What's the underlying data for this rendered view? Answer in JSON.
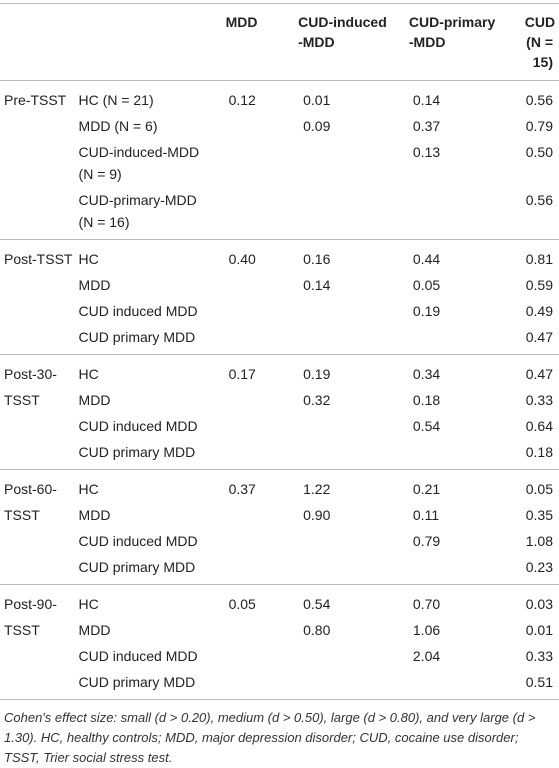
{
  "table": {
    "header": [
      [
        "MDD"
      ],
      [
        "CUD-induced",
        "-MDD"
      ],
      [
        "CUD-primary",
        "-MDD"
      ],
      [
        "CUD",
        "(N = 15)"
      ]
    ],
    "groups": [
      {
        "time": [
          "Pre-TSST"
        ],
        "rows": [
          {
            "label": [
              "HC (N = 21)"
            ],
            "cells": [
              "0.12",
              "0.01",
              "0.14",
              "0.56"
            ]
          },
          {
            "label": [
              "MDD (N = 6)"
            ],
            "cells": [
              null,
              "0.09",
              "0.37",
              "0.79"
            ]
          },
          {
            "label": [
              "CUD-induced-MDD",
              "(N = 9)"
            ],
            "cells": [
              null,
              null,
              "0.13",
              "0.50"
            ]
          },
          {
            "label": [
              "CUD-primary-MDD",
              "(N = 16)"
            ],
            "cells": [
              null,
              null,
              null,
              "0.56"
            ]
          }
        ]
      },
      {
        "time": [
          "Post-TSST"
        ],
        "rows": [
          {
            "label": [
              "HC"
            ],
            "cells": [
              "0.40",
              "0.16",
              "0.44",
              "0.81"
            ]
          },
          {
            "label": [
              "MDD"
            ],
            "cells": [
              null,
              "0.14",
              "0.05",
              "0.59"
            ]
          },
          {
            "label": [
              "CUD induced MDD"
            ],
            "cells": [
              null,
              null,
              "0.19",
              "0.49"
            ]
          },
          {
            "label": [
              "CUD primary MDD"
            ],
            "cells": [
              null,
              null,
              null,
              "0.47"
            ]
          }
        ]
      },
      {
        "time": [
          "Post-30-",
          "TSST"
        ],
        "rows": [
          {
            "label": [
              "HC"
            ],
            "cells": [
              "0.17",
              "0.19",
              "0.34",
              "0.47"
            ]
          },
          {
            "label": [
              "MDD"
            ],
            "cells": [
              null,
              "0.32",
              "0.18",
              "0.33"
            ]
          },
          {
            "label": [
              "CUD induced MDD"
            ],
            "cells": [
              null,
              null,
              "0.54",
              "0.64"
            ]
          },
          {
            "label": [
              "CUD primary MDD"
            ],
            "cells": [
              null,
              null,
              null,
              "0.18"
            ]
          }
        ]
      },
      {
        "time": [
          "Post-60-",
          "TSST"
        ],
        "rows": [
          {
            "label": [
              "HC"
            ],
            "cells": [
              "0.37",
              "1.22",
              "0.21",
              "0.05"
            ]
          },
          {
            "label": [
              "MDD"
            ],
            "cells": [
              null,
              "0.90",
              "0.11",
              "0.35"
            ]
          },
          {
            "label": [
              "CUD induced MDD"
            ],
            "cells": [
              null,
              null,
              "0.79",
              "1.08"
            ]
          },
          {
            "label": [
              "CUD primary MDD"
            ],
            "cells": [
              null,
              null,
              null,
              "0.23"
            ]
          }
        ]
      },
      {
        "time": [
          "Post-90-",
          "TSST"
        ],
        "rows": [
          {
            "label": [
              "HC"
            ],
            "cells": [
              "0.05",
              "0.54",
              "0.70",
              "0.03"
            ]
          },
          {
            "label": [
              "MDD"
            ],
            "cells": [
              null,
              "0.80",
              "1.06",
              "0.01"
            ]
          },
          {
            "label": [
              "CUD induced MDD"
            ],
            "cells": [
              null,
              null,
              "2.04",
              "0.33"
            ]
          },
          {
            "label": [
              "CUD primary MDD"
            ],
            "cells": [
              null,
              null,
              null,
              "0.51"
            ]
          }
        ]
      }
    ],
    "footnote": "Cohen's effect size: small (d > 0.20), medium (d > 0.50), large (d > 0.80), and very large (d > 1.30). HC, healthy controls; MDD, major depression disorder; CUD, cocaine use disorder; TSST, Trier social stress test."
  }
}
